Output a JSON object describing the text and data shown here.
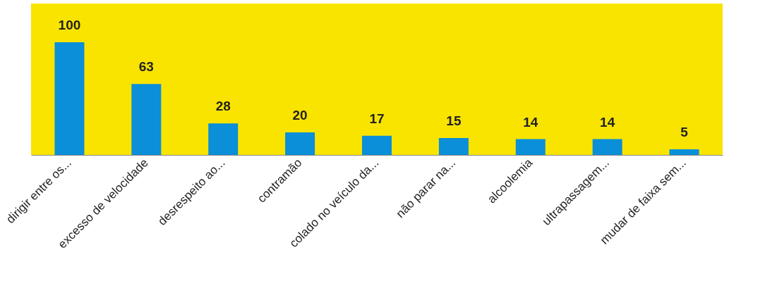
{
  "chart_data": {
    "type": "bar",
    "categories": [
      "dirigir entre os...",
      "excesso de velocidade",
      "desrespeito ao...",
      "contramão",
      "colado no veículo da...",
      "não parar na...",
      "alcoolemia",
      "ultrapassagem...",
      "mudar de faixa sem..."
    ],
    "values": [
      100,
      63,
      28,
      20,
      17,
      15,
      14,
      14,
      5
    ],
    "color": "#0a8fd8",
    "data_labels": true
  }
}
